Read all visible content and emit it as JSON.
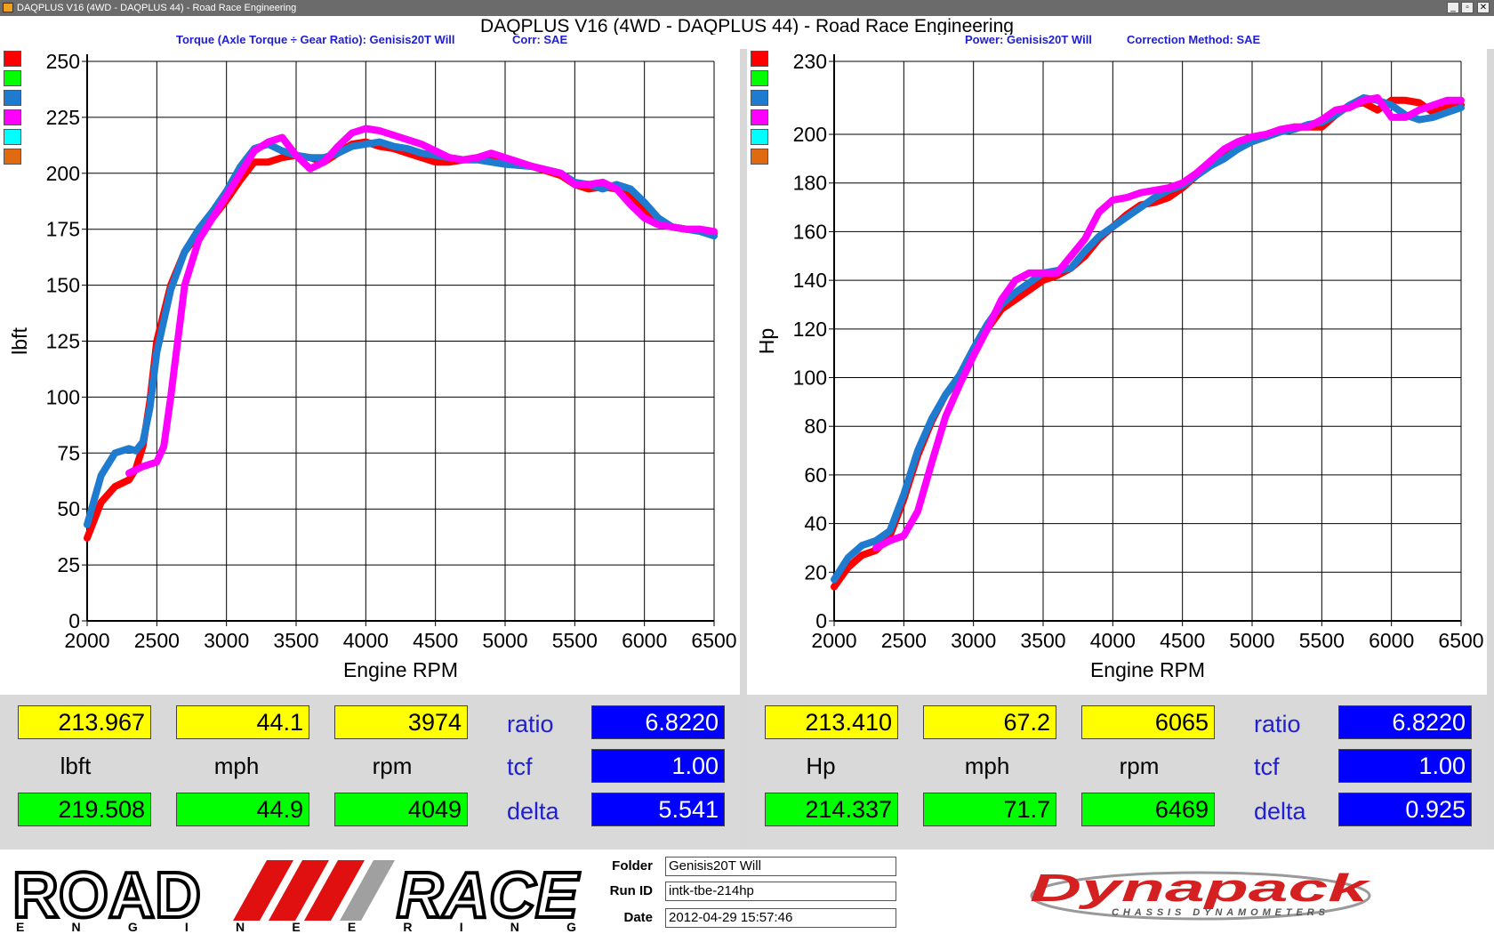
{
  "window": {
    "title": "DAQPLUS V16 (4WD - DAQPLUS 44) - Road Race Engineering",
    "controls": [
      "_",
      "▫",
      "✕"
    ]
  },
  "header": {
    "title": "DAQPLUS V16 (4WD - DAQPLUS 44) - Road Race Engineering",
    "left_subtitle": "Torque (Axle Torque ÷ Gear Ratio): Genisis20T Will",
    "left_corr": "Corr: SAE",
    "right_subtitle": "Power: Genisis20T Will",
    "right_corr": "Correction Method: SAE"
  },
  "legend_swatches": [
    "#ff0000",
    "#00ff00",
    "#1e7bd0",
    "#ff00ff",
    "#00ffff",
    "#e06a10"
  ],
  "chart_data": [
    {
      "type": "line",
      "title": "",
      "xlabel": "Engine RPM",
      "ylabel": "lbft",
      "xlim": [
        2000,
        6500
      ],
      "ylim": [
        0,
        250
      ],
      "xticks": [
        "2000",
        "2500",
        "3000",
        "3500",
        "4000",
        "4500",
        "5000",
        "5500",
        "6000",
        "6500"
      ],
      "yticks": [
        "0",
        "25",
        "50",
        "75",
        "100",
        "125",
        "150",
        "175",
        "200",
        "225",
        "250"
      ],
      "grid": true,
      "series": [
        {
          "color": "#ff0000",
          "x": [
            2000,
            2100,
            2200,
            2300,
            2350,
            2400,
            2450,
            2500,
            2600,
            2700,
            2800,
            2900,
            3000,
            3100,
            3200,
            3300,
            3400,
            3500,
            3600,
            3700,
            3800,
            3900,
            4000,
            4100,
            4200,
            4300,
            4400,
            4500,
            4600,
            4700,
            4800,
            4900,
            5000,
            5200,
            5400,
            5500,
            5600,
            5700,
            5800,
            5900,
            6000,
            6100,
            6200,
            6300,
            6400,
            6500
          ],
          "y": [
            37,
            53,
            60,
            63,
            68,
            78,
            98,
            125,
            150,
            165,
            173,
            180,
            188,
            197,
            205,
            205,
            207,
            208,
            207,
            205,
            209,
            213,
            214,
            212,
            211,
            209,
            207,
            205,
            205,
            206,
            207,
            206,
            205,
            203,
            199,
            195,
            193,
            194,
            193,
            190,
            184,
            178,
            176,
            175,
            175,
            173
          ]
        },
        {
          "color": "#1e7bd0",
          "x": [
            2000,
            2100,
            2200,
            2300,
            2350,
            2400,
            2450,
            2500,
            2600,
            2700,
            2800,
            2900,
            3000,
            3100,
            3200,
            3300,
            3400,
            3500,
            3600,
            3700,
            3800,
            3900,
            4000,
            4100,
            4200,
            4300,
            4400,
            4500,
            4600,
            4700,
            4800,
            4900,
            5000,
            5200,
            5400,
            5500,
            5600,
            5700,
            5800,
            5900,
            6000,
            6100,
            6200,
            6300,
            6400,
            6500
          ],
          "y": [
            43,
            65,
            75,
            77,
            76,
            80,
            95,
            120,
            148,
            165,
            175,
            183,
            192,
            203,
            211,
            213,
            210,
            208,
            207,
            207,
            209,
            212,
            213,
            214,
            212,
            211,
            209,
            208,
            207,
            206,
            206,
            205,
            204,
            203,
            200,
            196,
            195,
            193,
            195,
            193,
            187,
            180,
            176,
            175,
            174,
            172
          ]
        },
        {
          "color": "#ff00ff",
          "x": [
            2300,
            2400,
            2500,
            2550,
            2600,
            2650,
            2700,
            2800,
            2900,
            3000,
            3100,
            3200,
            3300,
            3400,
            3500,
            3600,
            3700,
            3800,
            3900,
            4000,
            4100,
            4200,
            4300,
            4400,
            4500,
            4600,
            4700,
            4800,
            4900,
            5000,
            5200,
            5400,
            5500,
            5600,
            5700,
            5800,
            5900,
            6000,
            6100,
            6200,
            6300,
            6400,
            6500
          ],
          "y": [
            66,
            69,
            71,
            78,
            100,
            125,
            150,
            170,
            180,
            190,
            200,
            210,
            214,
            216,
            208,
            202,
            205,
            212,
            218,
            220,
            219,
            217,
            215,
            213,
            210,
            207,
            206,
            207,
            209,
            207,
            203,
            200,
            195,
            195,
            196,
            193,
            186,
            180,
            177,
            176,
            175,
            175,
            174
          ]
        }
      ]
    },
    {
      "type": "line",
      "title": "",
      "xlabel": "Engine RPM",
      "ylabel": "Hp",
      "xlim": [
        2000,
        6500
      ],
      "ylim": [
        0,
        230
      ],
      "xticks": [
        "2000",
        "2500",
        "3000",
        "3500",
        "4000",
        "4500",
        "5000",
        "5500",
        "6000",
        "6500"
      ],
      "yticks": [
        "0",
        "20",
        "40",
        "60",
        "80",
        "100",
        "120",
        "140",
        "160",
        "180",
        "200",
        "230"
      ],
      "grid": true,
      "series": [
        {
          "color": "#ff0000",
          "x": [
            2000,
            2100,
            2200,
            2300,
            2400,
            2500,
            2600,
            2700,
            2800,
            2900,
            3000,
            3100,
            3200,
            3300,
            3400,
            3500,
            3600,
            3700,
            3800,
            3900,
            4000,
            4100,
            4200,
            4300,
            4400,
            4500,
            4600,
            4700,
            4800,
            4900,
            5000,
            5100,
            5200,
            5300,
            5400,
            5500,
            5600,
            5700,
            5800,
            5900,
            6000,
            6100,
            6200,
            6300,
            6400,
            6500
          ],
          "y": [
            14,
            22,
            27,
            29,
            35,
            50,
            68,
            82,
            93,
            100,
            110,
            120,
            128,
            132,
            136,
            140,
            142,
            145,
            150,
            157,
            162,
            167,
            171,
            172,
            174,
            178,
            183,
            187,
            191,
            195,
            197,
            199,
            201,
            203,
            203,
            203,
            208,
            212,
            213,
            210,
            214,
            214,
            213,
            209,
            211,
            212
          ]
        },
        {
          "color": "#1e7bd0",
          "x": [
            2000,
            2100,
            2200,
            2300,
            2400,
            2500,
            2600,
            2700,
            2800,
            2900,
            3000,
            3100,
            3200,
            3300,
            3400,
            3500,
            3600,
            3700,
            3800,
            3900,
            4000,
            4100,
            4200,
            4300,
            4400,
            4500,
            4600,
            4700,
            4800,
            4900,
            5000,
            5100,
            5200,
            5300,
            5400,
            5500,
            5600,
            5700,
            5800,
            5900,
            6000,
            6100,
            6200,
            6300,
            6400,
            6500
          ],
          "y": [
            17,
            26,
            31,
            33,
            37,
            52,
            70,
            83,
            93,
            101,
            112,
            122,
            130,
            135,
            139,
            143,
            144,
            145,
            152,
            158,
            162,
            166,
            170,
            174,
            177,
            179,
            183,
            187,
            190,
            194,
            197,
            199,
            201,
            202,
            204,
            205,
            208,
            212,
            215,
            214,
            212,
            208,
            206,
            207,
            209,
            211
          ]
        },
        {
          "color": "#ff00ff",
          "x": [
            2300,
            2400,
            2500,
            2600,
            2700,
            2800,
            2900,
            3000,
            3100,
            3200,
            3300,
            3400,
            3500,
            3600,
            3700,
            3800,
            3900,
            4000,
            4100,
            4200,
            4300,
            4400,
            4500,
            4600,
            4700,
            4800,
            4900,
            5000,
            5100,
            5200,
            5300,
            5400,
            5500,
            5600,
            5700,
            5800,
            5900,
            6000,
            6100,
            6200,
            6300,
            6400,
            6500
          ],
          "y": [
            30,
            33,
            35,
            45,
            65,
            84,
            97,
            109,
            120,
            132,
            140,
            143,
            143,
            143,
            150,
            157,
            168,
            173,
            174,
            176,
            177,
            178,
            180,
            184,
            189,
            194,
            197,
            199,
            200,
            202,
            203,
            203,
            206,
            210,
            211,
            214,
            215,
            207,
            207,
            210,
            212,
            214,
            214
          ]
        }
      ]
    }
  ],
  "readouts": {
    "left": {
      "yellow": [
        "213.967",
        "44.1",
        "3974"
      ],
      "units": [
        "lbft",
        "mph",
        "rpm"
      ],
      "green": [
        "219.508",
        "44.9",
        "4049"
      ],
      "labels": [
        "ratio",
        "tcf",
        "delta"
      ],
      "blue": [
        "6.8220",
        "1.00",
        "5.541"
      ]
    },
    "right": {
      "yellow": [
        "213.410",
        "67.2",
        "6065"
      ],
      "units": [
        "Hp",
        "mph",
        "rpm"
      ],
      "green": [
        "214.337",
        "71.7",
        "6469"
      ],
      "labels": [
        "ratio",
        "tcf",
        "delta"
      ],
      "blue": [
        "6.8220",
        "1.00",
        "0.925"
      ]
    }
  },
  "footer": {
    "logo_road": "ROAD",
    "logo_race": "RACE",
    "logo_engineering": "E N G I N E E R I N G",
    "folder_label": "Folder",
    "folder_value": "Genisis20T Will",
    "runid_label": "Run ID",
    "runid_value": "intk-tbe-214hp",
    "date_label": "Date",
    "date_value": "2012-04-29 15:57:46",
    "dynapack_logo": "Dynapack",
    "dynapack_sub": "CHASSIS DYNAMOMETERS"
  }
}
